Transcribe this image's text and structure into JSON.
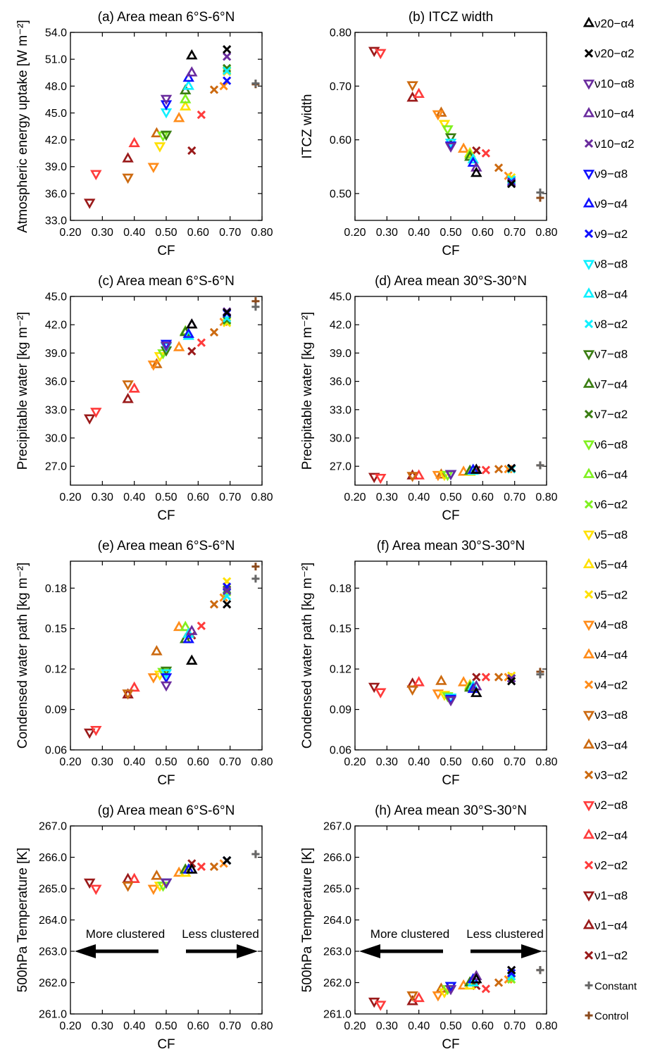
{
  "x_ticks": [
    "0.20",
    "0.30",
    "0.40",
    "0.50",
    "0.60",
    "0.70",
    "0.80"
  ],
  "series": [
    {
      "name": "ν20−α4",
      "marker": "tri-up",
      "color": "#000000"
    },
    {
      "name": "ν20−α2",
      "marker": "x",
      "color": "#000000"
    },
    {
      "name": "ν10−α8",
      "marker": "tri-down",
      "color": "#6a2c9e"
    },
    {
      "name": "ν10−α4",
      "marker": "tri-up",
      "color": "#6a2c9e"
    },
    {
      "name": "ν10−α2",
      "marker": "x",
      "color": "#6a2c9e"
    },
    {
      "name": "ν9−α8",
      "marker": "tri-down",
      "color": "#1010ff"
    },
    {
      "name": "ν9−α4",
      "marker": "tri-up",
      "color": "#1010ff"
    },
    {
      "name": "ν9−α2",
      "marker": "x",
      "color": "#1010ff"
    },
    {
      "name": "ν8−α8",
      "marker": "tri-down",
      "color": "#10f0ff"
    },
    {
      "name": "ν8−α4",
      "marker": "tri-up",
      "color": "#10f0ff"
    },
    {
      "name": "ν8−α2",
      "marker": "x",
      "color": "#10f0ff"
    },
    {
      "name": "ν7−α8",
      "marker": "tri-down",
      "color": "#3a7d12"
    },
    {
      "name": "ν7−α4",
      "marker": "tri-up",
      "color": "#3a7d12"
    },
    {
      "name": "ν7−α2",
      "marker": "x",
      "color": "#3a7d12"
    },
    {
      "name": "ν6−α8",
      "marker": "tri-down",
      "color": "#80f020"
    },
    {
      "name": "ν6−α4",
      "marker": "tri-up",
      "color": "#80f020"
    },
    {
      "name": "ν6−α2",
      "marker": "x",
      "color": "#80f020"
    },
    {
      "name": "ν5−α8",
      "marker": "tri-down",
      "color": "#ffe000"
    },
    {
      "name": "ν5−α4",
      "marker": "tri-up",
      "color": "#ffe000"
    },
    {
      "name": "ν5−α2",
      "marker": "x",
      "color": "#ffe000"
    },
    {
      "name": "ν4−α8",
      "marker": "tri-down",
      "color": "#ff8c1a"
    },
    {
      "name": "ν4−α4",
      "marker": "tri-up",
      "color": "#ff8c1a"
    },
    {
      "name": "ν4−α2",
      "marker": "x",
      "color": "#ff8c1a"
    },
    {
      "name": "ν3−α8",
      "marker": "tri-down",
      "color": "#cc6a10"
    },
    {
      "name": "ν3−α4",
      "marker": "tri-up",
      "color": "#cc6a10"
    },
    {
      "name": "ν3−α2",
      "marker": "x",
      "color": "#cc6a10"
    },
    {
      "name": "ν2−α8",
      "marker": "tri-down",
      "color": "#ff3b3b"
    },
    {
      "name": "ν2−α4",
      "marker": "tri-up",
      "color": "#ff3b3b"
    },
    {
      "name": "ν2−α2",
      "marker": "x",
      "color": "#ff3b3b"
    },
    {
      "name": "ν1−α8",
      "marker": "tri-down",
      "color": "#9a1a1a"
    },
    {
      "name": "ν1−α4",
      "marker": "tri-up",
      "color": "#9a1a1a"
    },
    {
      "name": "ν1−α2",
      "marker": "x",
      "color": "#9a1a1a"
    },
    {
      "name": "Constant",
      "marker": "plus",
      "color": "#666666"
    },
    {
      "name": "Control",
      "marker": "plus",
      "color": "#8b4a1c"
    }
  ],
  "cf": [
    0.58,
    0.69,
    0.5,
    0.58,
    0.69,
    0.5,
    0.57,
    0.69,
    0.5,
    0.57,
    0.69,
    0.5,
    0.56,
    0.69,
    0.49,
    0.56,
    0.69,
    0.48,
    0.56,
    0.69,
    0.46,
    0.54,
    0.68,
    0.38,
    0.47,
    0.65,
    0.28,
    0.4,
    0.61,
    0.26,
    0.38,
    0.58,
    0.78,
    0.78
  ],
  "chart_data": [
    {
      "id": "a",
      "type": "scatter",
      "title": "(a) Area mean 6°S-6°N",
      "xlabel": "CF",
      "ylabel": "Atmospheric energy uptake [W m⁻²]",
      "xlim": [
        0.2,
        0.8
      ],
      "ylim": [
        33.0,
        54.0
      ],
      "y_ticks": [
        "33.0",
        "36.0",
        "39.0",
        "42.0",
        "45.0",
        "48.0",
        "51.0",
        "54.0"
      ],
      "values": [
        51.4,
        52.1,
        46.6,
        49.5,
        51.3,
        46.0,
        48.9,
        48.6,
        45.1,
        48.0,
        49.7,
        42.6,
        47.5,
        50.0,
        42.5,
        46.5,
        49.8,
        41.3,
        45.7,
        49.6,
        39.0,
        44.4,
        48.0,
        37.8,
        42.7,
        47.6,
        38.2,
        41.6,
        44.8,
        35.0,
        39.9,
        40.8,
        48.3,
        48.2
      ]
    },
    {
      "id": "b",
      "type": "scatter",
      "title": "(b) ITCZ width",
      "xlabel": "CF",
      "ylabel": "ITCZ width",
      "xlim": [
        0.2,
        0.8
      ],
      "ylim": [
        0.45,
        0.8
      ],
      "y_ticks": [
        "0.50",
        "0.60",
        "0.70",
        "0.80"
      ],
      "values": [
        0.538,
        0.518,
        0.588,
        0.548,
        0.52,
        0.59,
        0.557,
        0.522,
        0.595,
        0.563,
        0.526,
        0.605,
        0.568,
        0.525,
        0.62,
        0.572,
        0.526,
        0.63,
        0.575,
        0.53,
        0.648,
        0.583,
        0.533,
        0.702,
        0.65,
        0.548,
        0.762,
        0.685,
        0.575,
        0.766,
        0.678,
        0.58,
        0.502,
        0.492
      ]
    },
    {
      "id": "c",
      "type": "scatter",
      "title": "(c) Area mean 6°S-6°N",
      "xlabel": "CF",
      "ylabel": "Precipitable water [kg m⁻²]",
      "xlim": [
        0.2,
        0.8
      ],
      "ylim": [
        25.0,
        45.0
      ],
      "y_ticks": [
        "27.0",
        "30.0",
        "33.0",
        "36.0",
        "39.0",
        "42.0",
        "45.0"
      ],
      "values": [
        42.0,
        43.3,
        39.8,
        42.0,
        43.4,
        40.0,
        41.0,
        43.2,
        39.7,
        40.8,
        42.7,
        39.3,
        41.2,
        42.5,
        39.0,
        41.3,
        42.4,
        38.7,
        41.2,
        42.2,
        37.8,
        39.6,
        42.3,
        35.7,
        37.8,
        41.2,
        32.8,
        35.2,
        40.1,
        32.1,
        34.1,
        39.2,
        43.9,
        44.5
      ]
    },
    {
      "id": "d",
      "type": "scatter",
      "title": "(d) Area mean 30°S-30°N",
      "xlabel": "CF",
      "ylabel": "Precipitable water [kg m⁻²]",
      "xlim": [
        0.2,
        0.8
      ],
      "ylim": [
        25.0,
        45.0
      ],
      "y_ticks": [
        "27.0",
        "30.0",
        "33.0",
        "36.0",
        "39.0",
        "42.0",
        "45.0"
      ],
      "values": [
        26.6,
        26.8,
        26.2,
        26.6,
        26.8,
        26.2,
        26.6,
        26.8,
        26.2,
        26.5,
        26.7,
        26.2,
        26.5,
        26.7,
        26.1,
        26.5,
        26.7,
        26.1,
        26.4,
        26.7,
        26.1,
        26.4,
        26.7,
        26.0,
        26.1,
        26.7,
        25.8,
        26.0,
        26.6,
        25.9,
        26.0,
        26.6,
        27.1,
        27.1
      ]
    },
    {
      "id": "e",
      "type": "scatter",
      "title": "(e) Area mean 6°S-6°N",
      "xlabel": "CF",
      "ylabel": "Condensed water path [kg m⁻²]",
      "xlim": [
        0.2,
        0.8
      ],
      "ylim": [
        0.06,
        0.2
      ],
      "y_ticks": [
        "0.06",
        "0.09",
        "0.12",
        "0.15",
        "0.18"
      ],
      "values": [
        0.126,
        0.168,
        0.108,
        0.148,
        0.178,
        0.114,
        0.142,
        0.181,
        0.117,
        0.146,
        0.174,
        0.119,
        0.142,
        0.179,
        0.118,
        0.151,
        0.177,
        0.116,
        0.151,
        0.185,
        0.114,
        0.151,
        0.173,
        0.102,
        0.133,
        0.168,
        0.075,
        0.106,
        0.152,
        0.073,
        0.101,
        0.145,
        0.187,
        0.196
      ]
    },
    {
      "id": "f",
      "type": "scatter",
      "title": "(f) Area mean 30°S-30°N",
      "xlabel": "CF",
      "ylabel": "Condensed water path [kg m⁻²]",
      "xlim": [
        0.2,
        0.8
      ],
      "ylim": [
        0.06,
        0.2
      ],
      "y_ticks": [
        "0.06",
        "0.09",
        "0.12",
        "0.15",
        "0.18"
      ],
      "values": [
        0.102,
        0.111,
        0.097,
        0.107,
        0.113,
        0.098,
        0.105,
        0.113,
        0.099,
        0.107,
        0.113,
        0.099,
        0.106,
        0.113,
        0.1,
        0.107,
        0.113,
        0.101,
        0.108,
        0.115,
        0.102,
        0.11,
        0.114,
        0.105,
        0.111,
        0.114,
        0.103,
        0.11,
        0.114,
        0.107,
        0.109,
        0.114,
        0.116,
        0.118
      ]
    },
    {
      "id": "g",
      "type": "scatter",
      "title": "(g) Area mean 6°S-6°N",
      "xlabel": "CF",
      "ylabel": "500hPa Temperature [K]",
      "xlim": [
        0.2,
        0.8
      ],
      "ylim": [
        261.0,
        267.0
      ],
      "y_ticks": [
        "261.0",
        "262.0",
        "263.0",
        "264.0",
        "265.0",
        "266.0",
        "267.0"
      ],
      "values": [
        265.6,
        265.9,
        265.2,
        265.6,
        265.9,
        265.2,
        265.6,
        265.9,
        265.2,
        265.6,
        265.9,
        265.2,
        265.6,
        265.9,
        265.1,
        265.6,
        265.9,
        265.1,
        265.5,
        265.9,
        265.0,
        265.5,
        265.8,
        265.1,
        265.4,
        265.7,
        265.0,
        265.3,
        265.7,
        265.2,
        265.3,
        265.8,
        266.1,
        266.1
      ],
      "annotations": [
        "More clustered",
        "Less clustered"
      ]
    },
    {
      "id": "h",
      "type": "scatter",
      "title": "(h) Area mean 30°S-30°N",
      "xlabel": "CF",
      "ylabel": "500hPa Temperature [K]",
      "xlim": [
        0.2,
        0.8
      ],
      "ylim": [
        261.0,
        267.0
      ],
      "y_ticks": [
        "261.0",
        "262.0",
        "263.0",
        "264.0",
        "265.0",
        "266.0",
        "267.0"
      ],
      "values": [
        262.1,
        262.4,
        261.8,
        262.2,
        262.4,
        261.9,
        262.1,
        262.3,
        261.9,
        262.0,
        262.2,
        261.9,
        262.0,
        262.2,
        261.8,
        262.0,
        262.1,
        261.7,
        261.9,
        262.1,
        261.6,
        261.9,
        262.1,
        261.6,
        261.8,
        262.0,
        261.3,
        261.5,
        261.8,
        261.4,
        261.4,
        261.9,
        262.4,
        262.4
      ],
      "annotations": [
        "More clustered",
        "Less clustered"
      ]
    }
  ]
}
